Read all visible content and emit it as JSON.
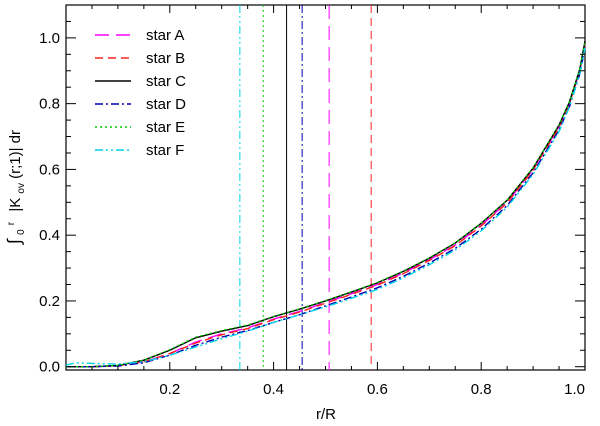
{
  "chart_data": {
    "type": "line",
    "xlabel": "r/R",
    "ylabel_parts": {
      "integral": "∫",
      "lower_limit": "0",
      "upper_limit": "r",
      "kernel_prefix": "|K",
      "kernel_subscript": "ov",
      "kernel_suffix": "(r;1)| dr"
    },
    "xlim": [
      0.0,
      1.0
    ],
    "ylim": [
      -0.01,
      1.1
    ],
    "x_ticks": [
      0.2,
      0.4,
      0.6,
      0.8,
      1.0
    ],
    "x_tick_labels": [
      "0.2",
      "0.4",
      "0.6",
      "0.8",
      "1.0"
    ],
    "y_ticks": [
      0.0,
      0.2,
      0.4,
      0.6,
      0.8,
      1.0
    ],
    "y_tick_labels": [
      "0.0",
      "0.2",
      "0.4",
      "0.6",
      "0.8",
      "1.0"
    ],
    "grid": false,
    "legend_position": "top-left",
    "series": [
      {
        "name": "star A",
        "color": "#ff00ff",
        "dash": "long-dash",
        "vline": 0.507,
        "x": [
          0.0,
          0.05,
          0.1,
          0.15,
          0.2,
          0.25,
          0.3,
          0.35,
          0.4,
          0.45,
          0.5,
          0.55,
          0.6,
          0.65,
          0.7,
          0.75,
          0.8,
          0.85,
          0.9,
          0.95,
          0.97,
          0.99,
          1.0
        ],
        "y": [
          0.0,
          0.0,
          0.003,
          0.015,
          0.04,
          0.075,
          0.1,
          0.118,
          0.145,
          0.168,
          0.195,
          0.222,
          0.25,
          0.285,
          0.325,
          0.37,
          0.43,
          0.5,
          0.6,
          0.73,
          0.8,
          0.9,
          0.98
        ]
      },
      {
        "name": "star B",
        "color": "#ff2020",
        "dash": "dash",
        "vline": 0.588,
        "x": [
          0.0,
          0.05,
          0.1,
          0.15,
          0.2,
          0.25,
          0.3,
          0.35,
          0.4,
          0.45,
          0.5,
          0.55,
          0.6,
          0.65,
          0.7,
          0.75,
          0.8,
          0.85,
          0.9,
          0.95,
          0.97,
          0.99,
          1.0
        ],
        "y": [
          0.0,
          0.0,
          0.003,
          0.015,
          0.04,
          0.072,
          0.097,
          0.116,
          0.143,
          0.166,
          0.193,
          0.22,
          0.248,
          0.283,
          0.323,
          0.368,
          0.428,
          0.498,
          0.598,
          0.728,
          0.8,
          0.9,
          0.98
        ]
      },
      {
        "name": "star C",
        "color": "#000000",
        "dash": "solid",
        "vline": 0.425,
        "x": [
          0.0,
          0.05,
          0.1,
          0.15,
          0.2,
          0.25,
          0.3,
          0.35,
          0.4,
          0.45,
          0.5,
          0.55,
          0.6,
          0.65,
          0.7,
          0.75,
          0.8,
          0.85,
          0.9,
          0.95,
          0.97,
          0.99,
          1.0
        ],
        "y": [
          0.0,
          0.0,
          0.004,
          0.02,
          0.05,
          0.088,
          0.108,
          0.125,
          0.152,
          0.175,
          0.2,
          0.227,
          0.255,
          0.29,
          0.33,
          0.376,
          0.436,
          0.506,
          0.604,
          0.735,
          0.805,
          0.905,
          0.99
        ]
      },
      {
        "name": "star D",
        "color": "#0000b0",
        "dash": "dash-dot",
        "vline": 0.455,
        "x": [
          0.0,
          0.05,
          0.1,
          0.15,
          0.2,
          0.25,
          0.3,
          0.35,
          0.4,
          0.45,
          0.5,
          0.55,
          0.6,
          0.65,
          0.7,
          0.75,
          0.8,
          0.85,
          0.9,
          0.95,
          0.97,
          0.99,
          1.0
        ],
        "y": [
          0.0,
          0.0,
          0.002,
          0.012,
          0.035,
          0.065,
          0.09,
          0.11,
          0.135,
          0.158,
          0.185,
          0.212,
          0.24,
          0.275,
          0.315,
          0.36,
          0.418,
          0.49,
          0.59,
          0.72,
          0.79,
          0.89,
          0.97
        ]
      },
      {
        "name": "star E",
        "color": "#00cc00",
        "dash": "dot",
        "vline": 0.38,
        "x": [
          0.0,
          0.05,
          0.1,
          0.15,
          0.2,
          0.25,
          0.3,
          0.35,
          0.4,
          0.45,
          0.5,
          0.55,
          0.6,
          0.65,
          0.7,
          0.75,
          0.8,
          0.85,
          0.9,
          0.95,
          0.97,
          0.99,
          1.0
        ],
        "y": [
          0.0,
          0.0,
          0.004,
          0.02,
          0.052,
          0.09,
          0.11,
          0.127,
          0.153,
          0.176,
          0.201,
          0.228,
          0.256,
          0.291,
          0.331,
          0.377,
          0.437,
          0.507,
          0.605,
          0.736,
          0.806,
          0.906,
          0.99
        ]
      },
      {
        "name": "star F",
        "color": "#00d4e8",
        "dash": "dash-dot-dot",
        "vline": 0.335,
        "x": [
          0.0,
          0.02,
          0.05,
          0.1,
          0.15,
          0.2,
          0.25,
          0.3,
          0.35,
          0.4,
          0.45,
          0.5,
          0.55,
          0.6,
          0.65,
          0.7,
          0.75,
          0.8,
          0.85,
          0.9,
          0.95,
          0.97,
          0.99,
          1.0
        ],
        "y": [
          0.005,
          0.012,
          0.01,
          0.008,
          0.015,
          0.035,
          0.06,
          0.085,
          0.108,
          0.135,
          0.158,
          0.182,
          0.208,
          0.235,
          0.27,
          0.31,
          0.355,
          0.413,
          0.485,
          0.585,
          0.715,
          0.79,
          0.89,
          0.97
        ]
      }
    ]
  }
}
